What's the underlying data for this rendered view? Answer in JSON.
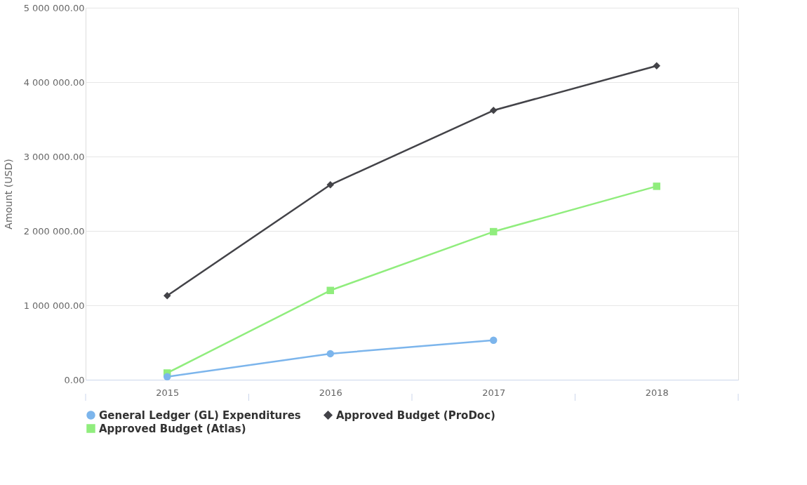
{
  "chart_data": {
    "type": "line",
    "ylabel": "Amount (USD)",
    "categories": [
      "2015",
      "2016",
      "2017",
      "2018"
    ],
    "series": [
      {
        "name": "General Ledger (GL) Expenditures",
        "color": "#7cb5ec",
        "marker": "circle",
        "values": [
          40000,
          350000,
          530000,
          null
        ]
      },
      {
        "name": "Approved Budget (ProDoc)",
        "color": "#434348",
        "marker": "diamond",
        "values": [
          1130000,
          2620000,
          3620000,
          4220000
        ]
      },
      {
        "name": "Approved Budget (Atlas)",
        "color": "#90ed7d",
        "marker": "square",
        "values": [
          90000,
          1200000,
          1990000,
          2600000
        ]
      }
    ],
    "ylim": [
      0,
      5000000
    ],
    "yticks": [
      {
        "value": 0,
        "label": "0.00"
      },
      {
        "value": 1000000,
        "label": "1 000 000.00"
      },
      {
        "value": 2000000,
        "label": "2 000 000.00"
      },
      {
        "value": 3000000,
        "label": "3 000 000.00"
      },
      {
        "value": 4000000,
        "label": "4 000 000.00"
      },
      {
        "value": 5000000,
        "label": "5 000 000.00"
      }
    ],
    "grid": "y",
    "legend": "bottom"
  }
}
